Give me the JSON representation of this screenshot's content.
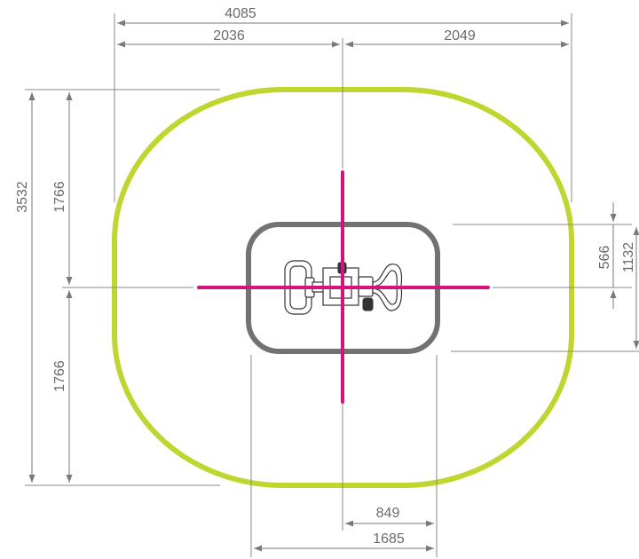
{
  "colors": {
    "safety_zone": "#c0d630",
    "equipment_footprint": "#727272",
    "center_axes": "#d6137c",
    "dimension_lines": "#7a7a7a"
  },
  "dimensions": {
    "overall_width": "4085",
    "left_half_width": "2036",
    "right_half_width": "2049",
    "overall_height": "3532",
    "upper_half_height": "1766",
    "lower_half_height": "1766",
    "footprint_half_height": "566",
    "footprint_height": "1132",
    "footprint_right_half_width": "849",
    "footprint_width": "1685"
  }
}
